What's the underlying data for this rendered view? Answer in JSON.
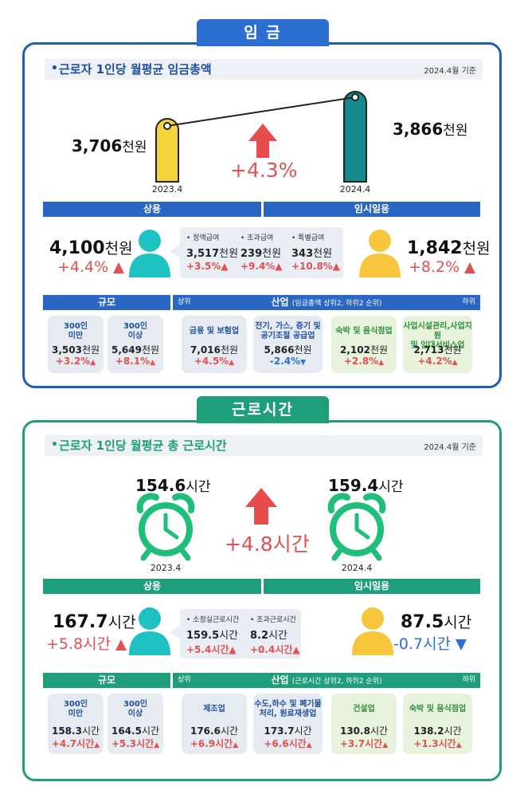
{
  "wage": {
    "tab": "임 금",
    "title": "근로자 1인당 월평균 임금총액",
    "basis": "2024.4월 기준",
    "prev": {
      "value": "3,706",
      "unit": "천원",
      "year": "2023.4"
    },
    "curr": {
      "value": "3,866",
      "unit": "천원",
      "year": "2024.4"
    },
    "change": "+4.3%",
    "regular_band": "상용",
    "temp_band": "임시일용",
    "regular": {
      "value": "4,100",
      "unit": "천원",
      "change": "+4.4%"
    },
    "temp": {
      "value": "1,842",
      "unit": "천원",
      "change": "+8.2%"
    },
    "callout": [
      {
        "label": "• 정액급여",
        "value": "3,517",
        "unit": "천원",
        "change": "+3.5%"
      },
      {
        "label": "• 초과급여",
        "value": "239",
        "unit": "천원",
        "change": "+9.4%"
      },
      {
        "label": "• 특별급여",
        "value": "343",
        "unit": "천원",
        "change": "+10.8%"
      }
    ],
    "size_band": "규모",
    "industry_band": "산업",
    "industry_note": "(임금총액 상위2, 하위2 순위)",
    "upper": "상위",
    "lower": "하위",
    "cards": [
      {
        "name": "300인\n미만",
        "value": "3,503",
        "unit": "천원",
        "change": "+3.2%",
        "dir": "up"
      },
      {
        "name": "300인\n이상",
        "value": "5,649",
        "unit": "천원",
        "change": "+8.1%",
        "dir": "up"
      },
      {
        "name": "금융 및 보험업",
        "value": "7,016",
        "unit": "천원",
        "change": "+4.5%",
        "dir": "up"
      },
      {
        "name": "전기, 가스, 증기 및\n공기조절 공급업",
        "value": "5,866",
        "unit": "천원",
        "change": "-2.4%",
        "dir": "down"
      },
      {
        "name": "숙박 및 음식점업",
        "value": "2,102",
        "unit": "천원",
        "change": "+2.8%",
        "dir": "up"
      },
      {
        "name": "사업시설관리,사업지원\n및 임대서비스업",
        "value": "2,713",
        "unit": "천원",
        "change": "+4.2%",
        "dir": "up"
      }
    ]
  },
  "hours": {
    "tab": "근로시간",
    "title": "근로자 1인당 월평균 총 근로시간",
    "basis": "2024.4월 기준",
    "prev": {
      "value": "154.6",
      "unit": "시간",
      "year": "2023.4"
    },
    "curr": {
      "value": "159.4",
      "unit": "시간",
      "year": "2024.4"
    },
    "change": "+4.8시간",
    "regular_band": "상용",
    "temp_band": "임시일용",
    "regular": {
      "value": "167.7",
      "unit": "시간",
      "change": "+5.8시간"
    },
    "temp": {
      "value": "87.5",
      "unit": "시간",
      "change": "-0.7시간"
    },
    "callout": [
      {
        "label": "• 소정실근로시간",
        "value": "159.5",
        "unit": "시간",
        "change": "+5.4시간"
      },
      {
        "label": "• 초과근로시간",
        "value": "8.2",
        "unit": "시간",
        "change": "+0.4시간"
      }
    ],
    "size_band": "규모",
    "industry_band": "산업",
    "industry_note": "(근로시간 상위2, 하위2 순위)",
    "upper": "상위",
    "lower": "하위",
    "cards": [
      {
        "name": "300인\n미만",
        "value": "158.3",
        "unit": "시간",
        "change": "+4.7시간",
        "dir": "up"
      },
      {
        "name": "300인\n이상",
        "value": "164.5",
        "unit": "시간",
        "change": "+5.3시간",
        "dir": "up"
      },
      {
        "name": "제조업",
        "value": "176.6",
        "unit": "시간",
        "change": "+6.9시간",
        "dir": "up"
      },
      {
        "name": "수도,하수 및 폐기물\n처리, 원료재생업",
        "value": "173.7",
        "unit": "시간",
        "change": "+6.6시간",
        "dir": "up"
      },
      {
        "name": "건설업",
        "value": "130.8",
        "unit": "시간",
        "change": "+3.7시간",
        "dir": "up"
      },
      {
        "name": "숙박 및 음식점업",
        "value": "138.2",
        "unit": "시간",
        "change": "+1.3시간",
        "dir": "up"
      }
    ]
  },
  "colors": {
    "blue": "#1e5db8",
    "green": "#1f9e7b",
    "red": "#e05252",
    "down": "#2b6fd3",
    "yellow": "#f6d33c",
    "teal": "#138a8c",
    "cyan": "#1fc2c2",
    "person_yellow": "#f7c63c"
  }
}
